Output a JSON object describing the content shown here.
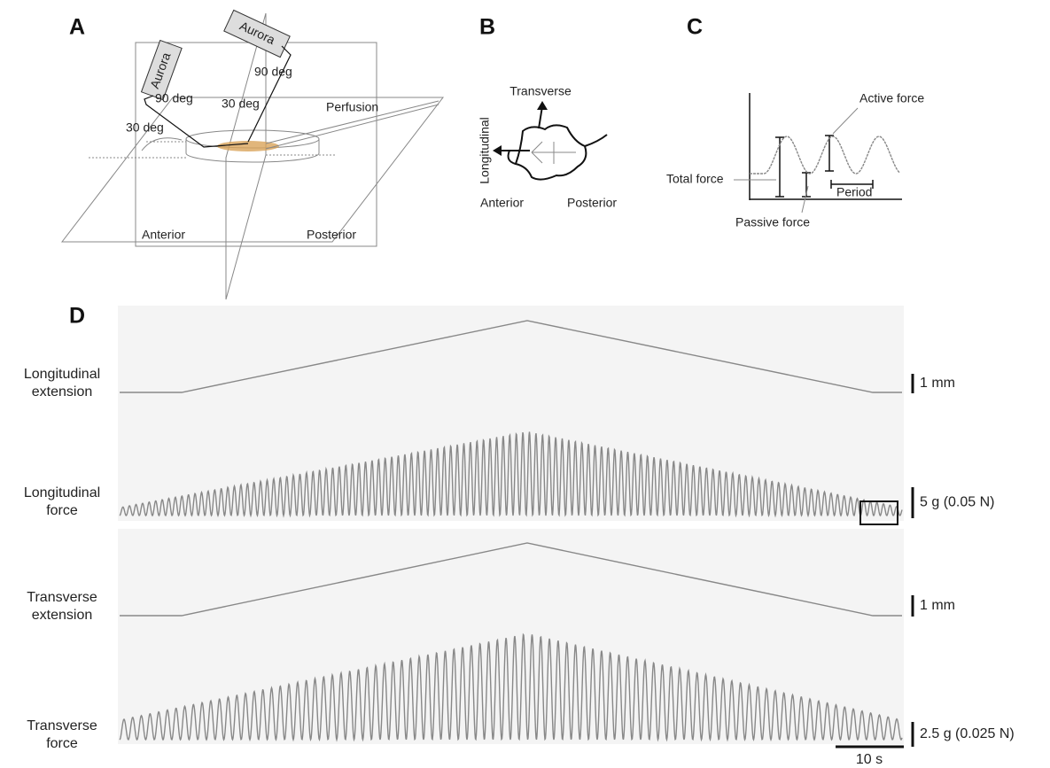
{
  "panel_a": {
    "label": "A",
    "aurora": [
      "Aurora",
      "Aurora"
    ],
    "angles": [
      "90 deg",
      "90 deg",
      "30 deg",
      "30 deg"
    ],
    "perfusion": "Perfusion",
    "anterior": "Anterior",
    "posterior": "Posterior"
  },
  "panel_b": {
    "label": "B",
    "transverse": "Transverse",
    "longitudinal": "Longitudinal",
    "anterior": "Anterior",
    "posterior": "Posterior"
  },
  "panel_c": {
    "label": "C",
    "active_force": "Active force",
    "total_force": "Total force",
    "passive_force": "Passive force",
    "period": "Period"
  },
  "panel_d": {
    "label": "D",
    "rows": [
      {
        "label": [
          "Longitudinal",
          "extension"
        ],
        "scale": "1 mm"
      },
      {
        "label": [
          "Longitudinal",
          "force"
        ],
        "scale": "5 g (0.05 N)"
      },
      {
        "label": [
          "Transverse",
          "extension"
        ],
        "scale": "1 mm"
      },
      {
        "label": [
          "Transverse",
          "force"
        ],
        "scale": "2.5 g (0.025 N)"
      }
    ],
    "time_scale": "10 s"
  }
}
